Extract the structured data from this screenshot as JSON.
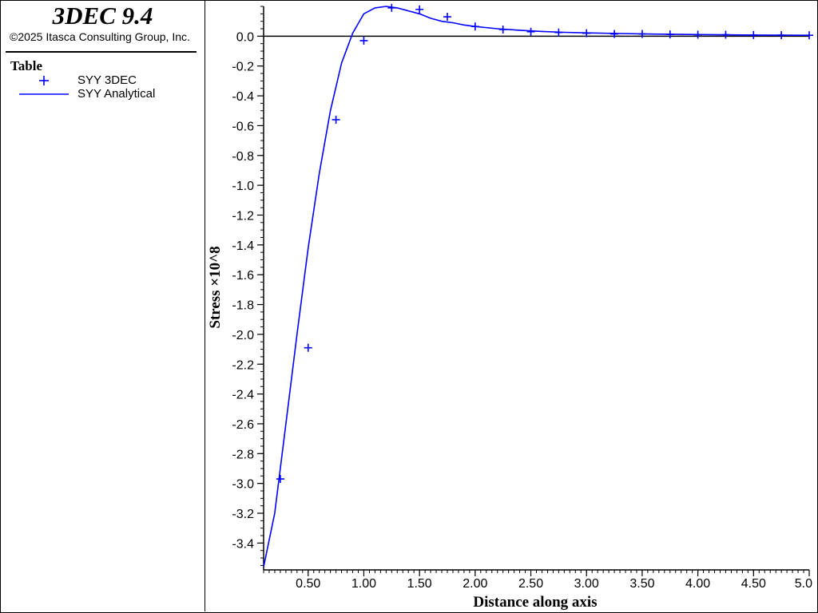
{
  "app": {
    "title": "3DEC 9.4",
    "copyright": "©2025 Itasca Consulting Group, Inc."
  },
  "legend": {
    "heading": "Table",
    "items": [
      {
        "label": "SYY 3DEC",
        "marker": "plus",
        "color": "#0000ff"
      },
      {
        "label": "SYY Analytical",
        "marker": "line",
        "color": "#0000ff"
      }
    ]
  },
  "chart_data": {
    "type": "line",
    "xlabel": "Distance along axis",
    "ylabel": "Stress ×10^8",
    "xlim": [
      0.1,
      5.0
    ],
    "ylim": [
      -3.58,
      0.2
    ],
    "x_major_ticks": [
      0.5,
      1.0,
      1.5,
      2.0,
      2.5,
      3.0,
      3.5,
      4.0,
      4.5,
      5.0
    ],
    "x_tick_labels": [
      "0.50",
      "1.00",
      "1.50",
      "2.00",
      "2.50",
      "3.00",
      "3.50",
      "4.00",
      "4.50",
      "5.0"
    ],
    "y_major_ticks": [
      0.0,
      -0.2,
      -0.4,
      -0.6,
      -0.8,
      -1.0,
      -1.2,
      -1.4,
      -1.6,
      -1.8,
      -2.0,
      -2.2,
      -2.4,
      -2.6,
      -2.8,
      -3.0,
      -3.2,
      -3.4
    ],
    "y_tick_labels": [
      "0.0",
      "-0.2",
      "-0.4",
      "-0.6",
      "-0.8",
      "-1.0",
      "-1.2",
      "-1.4",
      "-1.6",
      "-1.8",
      "-2.0",
      "-2.2",
      "-2.4",
      "-2.6",
      "-2.8",
      "-3.0",
      "-3.2",
      "-3.4"
    ],
    "zero_line": true,
    "grid": false,
    "series": [
      {
        "name": "SYY 3DEC",
        "style": "markers",
        "marker": "plus",
        "color": "#0000ff",
        "x": [
          0.25,
          0.5,
          0.75,
          1.0,
          1.25,
          1.5,
          1.75,
          2.0,
          2.25,
          2.5,
          2.75,
          3.0,
          3.25,
          3.5,
          3.75,
          4.0,
          4.25,
          4.5,
          4.75,
          5.0
        ],
        "y": [
          -2.97,
          -2.09,
          -0.56,
          -0.03,
          0.19,
          0.18,
          0.13,
          0.065,
          0.045,
          0.03,
          0.025,
          0.02,
          0.015,
          0.015,
          0.012,
          0.01,
          0.01,
          0.008,
          0.007,
          0.006
        ]
      },
      {
        "name": "SYY Analytical",
        "style": "line",
        "color": "#0000ff",
        "x": [
          0.1,
          0.2,
          0.3,
          0.4,
          0.5,
          0.6,
          0.7,
          0.8,
          0.9,
          1.0,
          1.1,
          1.2,
          1.3,
          1.4,
          1.5,
          1.6,
          1.7,
          1.8,
          1.9,
          2.0,
          2.2,
          2.4,
          2.6,
          2.8,
          3.0,
          3.3,
          3.6,
          4.0,
          4.5,
          5.0
        ],
        "y": [
          -3.56,
          -3.2,
          -2.6,
          -2.0,
          -1.42,
          -0.92,
          -0.5,
          -0.18,
          0.02,
          0.15,
          0.19,
          0.2,
          0.19,
          0.17,
          0.15,
          0.12,
          0.1,
          0.09,
          0.075,
          0.065,
          0.05,
          0.04,
          0.032,
          0.026,
          0.022,
          0.018,
          0.014,
          0.011,
          0.008,
          0.006
        ]
      }
    ]
  }
}
